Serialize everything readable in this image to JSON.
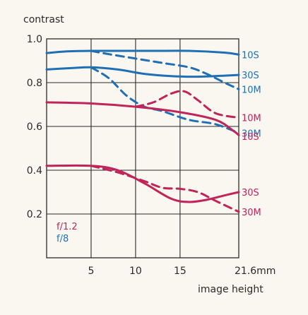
{
  "chart_data": {
    "type": "line",
    "ylabel": "contrast",
    "xlabel": "image height",
    "x_unit": "mm",
    "xlim": [
      0,
      21.6
    ],
    "ylim": [
      0,
      1.0
    ],
    "x_ticks": [
      {
        "value": 5,
        "label": "5"
      },
      {
        "value": 10,
        "label": "10"
      },
      {
        "value": 15,
        "label": "15"
      },
      {
        "value": 21.6,
        "label": "21.6mm"
      }
    ],
    "y_ticks": [
      {
        "value": 0.2,
        "label": "0.2"
      },
      {
        "value": 0.4,
        "label": "0.4"
      },
      {
        "value": 0.6,
        "label": "0.6"
      },
      {
        "value": 0.8,
        "label": "0.8"
      },
      {
        "value": 1.0,
        "label": "1.0"
      }
    ],
    "x_grid": [
      5,
      10,
      15
    ],
    "grid": true,
    "legend": [
      {
        "label": "f/1.2",
        "color": "#c0245a"
      },
      {
        "label": "f/8",
        "color": "#1f6fb5"
      }
    ],
    "legend_position": "bottom-left",
    "colors": {
      "f1_2": "#c0245a",
      "f8": "#1f6fb5",
      "grid": "#2a2a2a"
    },
    "series": [
      {
        "name": "10S",
        "aperture": "f/8",
        "color": "#1f6fb5",
        "dashed": false,
        "x": [
          0,
          2,
          5,
          8,
          12,
          16,
          20,
          21.6
        ],
        "y": [
          0.935,
          0.942,
          0.945,
          0.945,
          0.945,
          0.945,
          0.937,
          0.928
        ]
      },
      {
        "name": "10M",
        "aperture": "f/8",
        "color": "#1f6fb5",
        "dashed": true,
        "x": [
          5,
          7,
          10,
          13,
          16,
          18,
          20,
          21.6
        ],
        "y": [
          0.945,
          0.93,
          0.91,
          0.89,
          0.87,
          0.84,
          0.8,
          0.77
        ]
      },
      {
        "name": "30S",
        "aperture": "f/8",
        "color": "#1f6fb5",
        "dashed": false,
        "x": [
          0,
          3,
          5,
          8,
          11,
          14,
          17,
          20,
          21.6
        ],
        "y": [
          0.86,
          0.867,
          0.87,
          0.86,
          0.84,
          0.83,
          0.827,
          0.832,
          0.835
        ]
      },
      {
        "name": "30M",
        "aperture": "f/8",
        "color": "#1f6fb5",
        "dashed": true,
        "x": [
          5,
          7,
          9,
          11,
          13,
          16,
          19,
          21.6
        ],
        "y": [
          0.87,
          0.82,
          0.74,
          0.69,
          0.67,
          0.63,
          0.61,
          0.57
        ]
      },
      {
        "name": "10S",
        "aperture": "f/1.2",
        "color": "#c0245a",
        "dashed": false,
        "x": [
          0,
          5,
          10,
          15,
          19,
          21,
          21.6
        ],
        "y": [
          0.71,
          0.705,
          0.69,
          0.665,
          0.63,
          0.58,
          0.56
        ]
      },
      {
        "name": "10M",
        "aperture": "f/1.2",
        "color": "#c0245a",
        "dashed": true,
        "x": [
          10,
          12,
          14,
          15.5,
          17,
          19,
          21.6
        ],
        "y": [
          0.69,
          0.71,
          0.75,
          0.76,
          0.72,
          0.66,
          0.64
        ]
      },
      {
        "name": "30S",
        "aperture": "f/1.2",
        "color": "#c0245a",
        "dashed": false,
        "x": [
          0,
          5,
          8,
          11,
          14,
          16,
          18,
          20,
          21.6
        ],
        "y": [
          0.42,
          0.42,
          0.4,
          0.34,
          0.27,
          0.255,
          0.265,
          0.285,
          0.3
        ]
      },
      {
        "name": "30M",
        "aperture": "f/1.2",
        "color": "#c0245a",
        "dashed": true,
        "x": [
          5,
          8,
          11,
          13,
          15,
          17,
          19,
          21.6
        ],
        "y": [
          0.42,
          0.39,
          0.35,
          0.32,
          0.315,
          0.3,
          0.26,
          0.21
        ]
      }
    ],
    "series_labels": [
      {
        "text": "10S",
        "color": "#1f6fb5",
        "at": [
          21.6,
          0.928
        ]
      },
      {
        "text": "30S",
        "color": "#1f6fb5",
        "at": [
          21.6,
          0.835
        ]
      },
      {
        "text": "10M",
        "color": "#1f6fb5",
        "at": [
          21.6,
          0.77
        ]
      },
      {
        "text": "10M",
        "color": "#c0245a",
        "at": [
          21.6,
          0.64
        ]
      },
      {
        "text": "30M",
        "color": "#1f6fb5",
        "at": [
          21.6,
          0.57
        ]
      },
      {
        "text": "10S",
        "color": "#c0245a",
        "at": [
          21.6,
          0.555
        ]
      },
      {
        "text": "30S",
        "color": "#c0245a",
        "at": [
          21.6,
          0.3
        ]
      },
      {
        "text": "30M",
        "color": "#c0245a",
        "at": [
          21.6,
          0.21
        ]
      }
    ]
  }
}
